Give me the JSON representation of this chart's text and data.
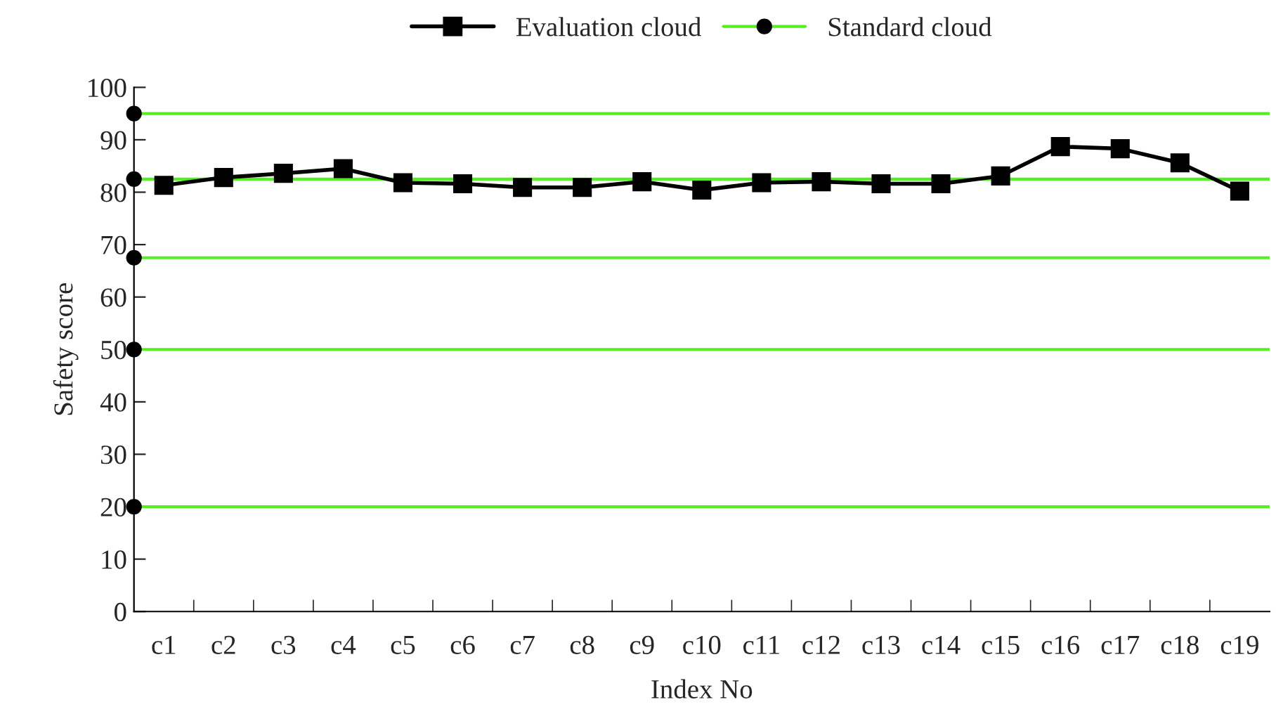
{
  "chart_data": {
    "type": "line",
    "xlabel": "Index No",
    "ylabel": "Safety score",
    "categories": [
      "c1",
      "c2",
      "c3",
      "c4",
      "c5",
      "c6",
      "c7",
      "c8",
      "c9",
      "c10",
      "c11",
      "c12",
      "c13",
      "c14",
      "c15",
      "c16",
      "c17",
      "c18",
      "c19"
    ],
    "series": [
      {
        "name": "Evaluation cloud",
        "color": "#000000",
        "values": [
          81.3,
          82.8,
          83.6,
          84.5,
          81.8,
          81.6,
          80.9,
          80.9,
          82.0,
          80.4,
          81.8,
          82.0,
          81.6,
          81.6,
          83.1,
          88.7,
          88.3,
          85.6,
          80.2
        ]
      }
    ],
    "ref_lines": [
      {
        "axis": "y",
        "value": 95,
        "color": "#55ee22",
        "label": "Standard cloud"
      },
      {
        "axis": "y",
        "value": 82.5,
        "color": "#55ee22",
        "label": null
      },
      {
        "axis": "y",
        "value": 67.5,
        "color": "#55ee22",
        "label": null
      },
      {
        "axis": "y",
        "value": 50,
        "color": "#55ee22",
        "label": null
      },
      {
        "axis": "y",
        "value": 20,
        "color": "#55ee22",
        "label": null
      }
    ],
    "ylim": [
      0,
      100
    ],
    "yticks": [
      0,
      10,
      20,
      30,
      40,
      50,
      60,
      70,
      80,
      90,
      100
    ],
    "marker": "square",
    "line_style": "solid",
    "grid": false,
    "legend": "top"
  }
}
